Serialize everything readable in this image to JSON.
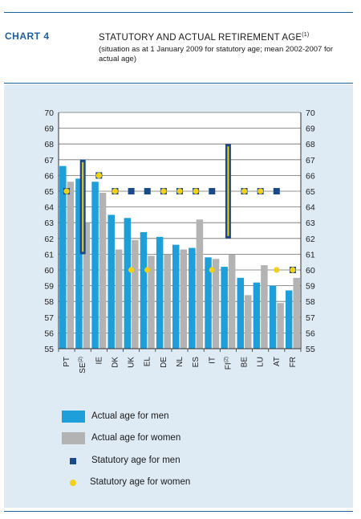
{
  "header": {
    "chart_number": "CHART 4",
    "title": "STATUTORY AND ACTUAL RETIREMENT AGE",
    "title_note": "(1)",
    "subtitle": "(situation as at 1 January 2009 for statutory age; mean 2002-2007 for actual age)"
  },
  "colors": {
    "men_bar": "#1f9fd9",
    "women_bar": "#b3b3b3",
    "statutory_men": "#1a4a8a",
    "statutory_women": "#f2cf1a",
    "panel_bg": "#deeaf4",
    "rule": "#1d5fa0"
  },
  "legend": {
    "items": [
      {
        "label": "Actual age for men",
        "marker": "bar-blue"
      },
      {
        "label": "Actual age for women",
        "marker": "bar-grey"
      },
      {
        "label": "Statutory age for men",
        "marker": "square-navy"
      },
      {
        "label": "Statutory age for women",
        "marker": "dot-yellow"
      }
    ]
  },
  "chart_data": {
    "type": "bar",
    "categories": [
      "PT",
      "SE",
      "IE",
      "DK",
      "UK",
      "EL",
      "DE",
      "NL",
      "ES",
      "IT",
      "FI",
      "BE",
      "LU",
      "AT",
      "FR"
    ],
    "category_notes": {
      "SE": "(2)",
      "FI": "(2)"
    },
    "ylim": [
      55,
      70
    ],
    "yticks": [
      55,
      56,
      57,
      58,
      59,
      60,
      61,
      62,
      63,
      64,
      65,
      66,
      67,
      68,
      69,
      70
    ],
    "grid": true,
    "series": [
      {
        "name": "Actual age for men",
        "kind": "bar",
        "values": [
          66.6,
          65.8,
          65.6,
          63.5,
          63.3,
          62.4,
          62.1,
          61.6,
          61.4,
          60.8,
          60.2,
          59.5,
          59.2,
          59.0,
          58.7
        ]
      },
      {
        "name": "Actual age for women",
        "kind": "bar",
        "values": [
          65.6,
          63.0,
          64.9,
          61.3,
          61.9,
          60.9,
          61.0,
          61.3,
          63.2,
          60.7,
          61.0,
          58.4,
          60.3,
          57.9,
          59.5
        ]
      },
      {
        "name": "Statutory age for men",
        "kind": "marker",
        "values": [
          65,
          null,
          66,
          65,
          65,
          65,
          65,
          65,
          65,
          65,
          null,
          65,
          65,
          65,
          60
        ]
      },
      {
        "name": "Statutory age for women",
        "kind": "marker",
        "values": [
          65,
          null,
          66,
          65,
          60,
          60,
          65,
          65,
          65,
          60,
          null,
          65,
          65,
          60,
          60
        ]
      }
    ],
    "ranges": [
      {
        "category": "SE",
        "low": 61,
        "high": 67
      },
      {
        "category": "FI",
        "low": 62,
        "high": 68
      }
    ]
  }
}
